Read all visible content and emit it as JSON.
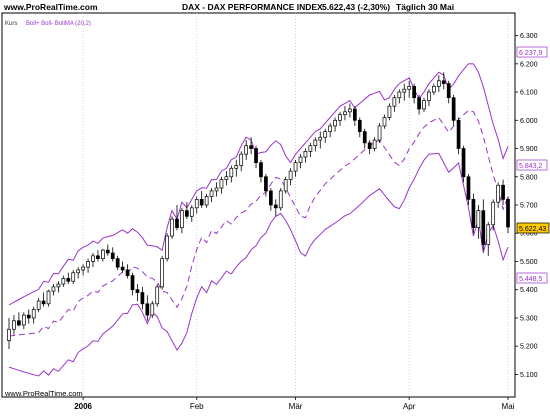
{
  "header": {
    "site": "www.ProRealTime.com",
    "title": "DAX - DAX PERFORMANCE INDEX",
    "last": "5.622,43 (-2,30%)",
    "period": "Täglich  30 Mai"
  },
  "legend": {
    "kurs": "Kurs",
    "indicator": "Boll+  Boll-  BollMA (20,2)"
  },
  "footer": {
    "site": "www.ProRealTime.com"
  },
  "colors": {
    "band": "#9933cc",
    "candle": "#000000",
    "price_box": "#ffcc00",
    "grid": "#000000"
  },
  "price_labels": {
    "upper": "6.237,9",
    "mid": "5.843,2",
    "last": "5.622,43",
    "lower": "5.448,5"
  },
  "chart_data": {
    "type": "candlestick",
    "title": "DAX - DAX PERFORMANCE INDEX",
    "y_ticks": [
      {
        "v": 5100,
        "label": "5.100"
      },
      {
        "v": 5200,
        "label": "5.200"
      },
      {
        "v": 5300,
        "label": "5.300"
      },
      {
        "v": 5400,
        "label": "5.400"
      },
      {
        "v": 5500,
        "label": "5.500"
      },
      {
        "v": 5600,
        "label": "5.600"
      },
      {
        "v": 5700,
        "label": "5.700"
      },
      {
        "v": 5800,
        "label": "5.800"
      },
      {
        "v": 5900,
        "label": "5.900"
      },
      {
        "v": 6000,
        "label": "6.000"
      },
      {
        "v": 6100,
        "label": "6.100"
      },
      {
        "v": 6200,
        "label": "6.200"
      },
      {
        "v": 6300,
        "label": "6.300"
      }
    ],
    "ylim": [
      5020,
      6380
    ],
    "x_ticks": [
      {
        "i": 15,
        "label": "2006"
      },
      {
        "i": 38,
        "label": "Feb"
      },
      {
        "i": 58,
        "label": "Mär"
      },
      {
        "i": 81,
        "label": "Apr"
      },
      {
        "i": 101,
        "label": "Mai"
      }
    ],
    "candles": [
      [
        5220,
        5300,
        5190,
        5260
      ],
      [
        5260,
        5310,
        5240,
        5290
      ],
      [
        5290,
        5320,
        5270,
        5275
      ],
      [
        5275,
        5320,
        5260,
        5310
      ],
      [
        5310,
        5330,
        5280,
        5300
      ],
      [
        5300,
        5340,
        5280,
        5330
      ],
      [
        5330,
        5370,
        5320,
        5360
      ],
      [
        5360,
        5390,
        5340,
        5350
      ],
      [
        5350,
        5400,
        5340,
        5395
      ],
      [
        5395,
        5420,
        5380,
        5410
      ],
      [
        5410,
        5430,
        5390,
        5420
      ],
      [
        5420,
        5450,
        5410,
        5440
      ],
      [
        5440,
        5460,
        5420,
        5430
      ],
      [
        5430,
        5470,
        5420,
        5460
      ],
      [
        5460,
        5480,
        5440,
        5470
      ],
      [
        5470,
        5490,
        5450,
        5480
      ],
      [
        5480,
        5510,
        5460,
        5500
      ],
      [
        5500,
        5530,
        5480,
        5520
      ],
      [
        5520,
        5540,
        5500,
        5510
      ],
      [
        5510,
        5545,
        5500,
        5540
      ],
      [
        5540,
        5560,
        5520,
        5530
      ],
      [
        5530,
        5550,
        5500,
        5510
      ],
      [
        5510,
        5520,
        5470,
        5480
      ],
      [
        5480,
        5500,
        5460,
        5470
      ],
      [
        5470,
        5490,
        5440,
        5450
      ],
      [
        5450,
        5460,
        5380,
        5400
      ],
      [
        5400,
        5420,
        5360,
        5390
      ],
      [
        5390,
        5410,
        5330,
        5350
      ],
      [
        5350,
        5380,
        5290,
        5310
      ],
      [
        5310,
        5360,
        5300,
        5350
      ],
      [
        5350,
        5420,
        5340,
        5410
      ],
      [
        5410,
        5520,
        5400,
        5510
      ],
      [
        5510,
        5600,
        5500,
        5590
      ],
      [
        5590,
        5660,
        5580,
        5650
      ],
      [
        5650,
        5700,
        5610,
        5620
      ],
      [
        5620,
        5690,
        5600,
        5680
      ],
      [
        5680,
        5710,
        5650,
        5660
      ],
      [
        5660,
        5700,
        5640,
        5690
      ],
      [
        5690,
        5730,
        5670,
        5720
      ],
      [
        5720,
        5750,
        5690,
        5700
      ],
      [
        5700,
        5740,
        5690,
        5730
      ],
      [
        5730,
        5760,
        5710,
        5750
      ],
      [
        5750,
        5780,
        5730,
        5760
      ],
      [
        5760,
        5800,
        5740,
        5790
      ],
      [
        5790,
        5820,
        5770,
        5800
      ],
      [
        5800,
        5840,
        5780,
        5830
      ],
      [
        5830,
        5860,
        5800,
        5840
      ],
      [
        5840,
        5890,
        5820,
        5880
      ],
      [
        5880,
        5930,
        5860,
        5910
      ],
      [
        5910,
        5940,
        5880,
        5900
      ],
      [
        5900,
        5910,
        5830,
        5850
      ],
      [
        5850,
        5860,
        5780,
        5800
      ],
      [
        5800,
        5810,
        5730,
        5750
      ],
      [
        5750,
        5760,
        5680,
        5700
      ],
      [
        5700,
        5720,
        5660,
        5690
      ],
      [
        5690,
        5760,
        5680,
        5750
      ],
      [
        5750,
        5800,
        5740,
        5790
      ],
      [
        5790,
        5830,
        5770,
        5820
      ],
      [
        5820,
        5860,
        5800,
        5850
      ],
      [
        5850,
        5880,
        5830,
        5870
      ],
      [
        5870,
        5900,
        5850,
        5890
      ],
      [
        5890,
        5920,
        5870,
        5910
      ],
      [
        5910,
        5940,
        5890,
        5930
      ],
      [
        5930,
        5960,
        5900,
        5940
      ],
      [
        5940,
        5970,
        5920,
        5960
      ],
      [
        5960,
        5990,
        5940,
        5980
      ],
      [
        5980,
        6010,
        5960,
        6000
      ],
      [
        6000,
        6030,
        5980,
        6020
      ],
      [
        6020,
        6050,
        6000,
        6030
      ],
      [
        6030,
        6060,
        6010,
        6040
      ],
      [
        6040,
        6050,
        5980,
        6000
      ],
      [
        6000,
        6010,
        5940,
        5960
      ],
      [
        5960,
        5970,
        5900,
        5920
      ],
      [
        5920,
        5930,
        5880,
        5900
      ],
      [
        5900,
        5940,
        5890,
        5930
      ],
      [
        5930,
        5990,
        5920,
        5980
      ],
      [
        5980,
        6020,
        5970,
        6010
      ],
      [
        6010,
        6060,
        6000,
        6050
      ],
      [
        6050,
        6090,
        6030,
        6080
      ],
      [
        6080,
        6110,
        6060,
        6100
      ],
      [
        6100,
        6130,
        6070,
        6110
      ],
      [
        6110,
        6140,
        6080,
        6120
      ],
      [
        6120,
        6130,
        6060,
        6080
      ],
      [
        6080,
        6090,
        6020,
        6040
      ],
      [
        6040,
        6080,
        6030,
        6070
      ],
      [
        6070,
        6110,
        6050,
        6100
      ],
      [
        6100,
        6130,
        6090,
        6120
      ],
      [
        6120,
        6160,
        6100,
        6140
      ],
      [
        6140,
        6170,
        6110,
        6130
      ],
      [
        6130,
        6140,
        6060,
        6080
      ],
      [
        6080,
        6090,
        5980,
        6000
      ],
      [
        6000,
        6010,
        5880,
        5900
      ],
      [
        5900,
        5910,
        5780,
        5800
      ],
      [
        5800,
        5810,
        5700,
        5720
      ],
      [
        5720,
        5740,
        5600,
        5620
      ],
      [
        5620,
        5700,
        5580,
        5680
      ],
      [
        5680,
        5720,
        5540,
        5560
      ],
      [
        5560,
        5640,
        5520,
        5630
      ],
      [
        5630,
        5720,
        5610,
        5710
      ],
      [
        5710,
        5780,
        5690,
        5770
      ],
      [
        5770,
        5790,
        5700,
        5720
      ],
      [
        5720,
        5730,
        5600,
        5622
      ]
    ],
    "bands": {
      "upper_start": 5330,
      "upper_end": 6237.9,
      "lower_start": 5040,
      "lower_end": 5448.5,
      "mid_start": 5180,
      "mid_end": 5843.2
    }
  }
}
